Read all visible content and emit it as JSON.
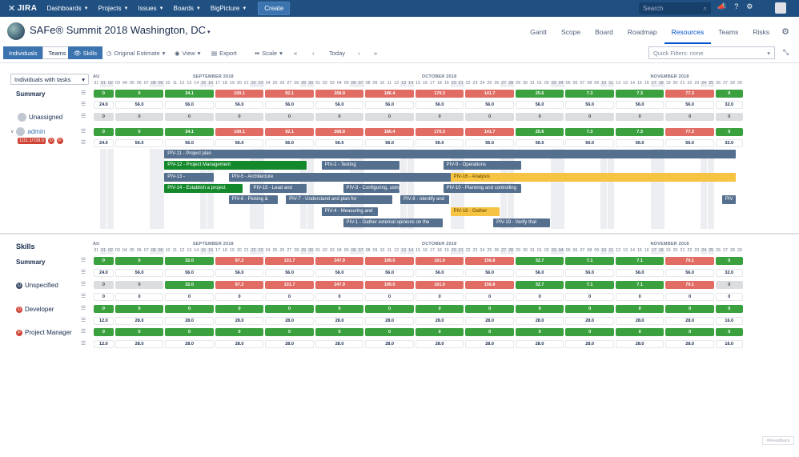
{
  "topnav": {
    "logo": "JIRA",
    "items": [
      "Dashboards",
      "Projects",
      "Issues",
      "Boards",
      "BigPicture"
    ],
    "create": "Create",
    "search_placeholder": "Search"
  },
  "project": {
    "title": "SAFe® Summit 2018 Washington, DC",
    "tabs": [
      "Gantt",
      "Scope",
      "Board",
      "Roadmap",
      "Resources",
      "Teams",
      "Risks"
    ],
    "active_tab": "Resources"
  },
  "toolbar": {
    "mode_individuals": "Individuals",
    "mode_teams": "Teams",
    "skills": "Skills",
    "estimate": "Original Estimate",
    "view": "View",
    "export": "Export",
    "scale": "Scale",
    "today": "Today",
    "quick_filter": "Quick Filters: none"
  },
  "resources": {
    "selector": "Individuals with tasks",
    "months": [
      "AU",
      "SEPTEMBER 2018",
      "OCTOBER 2018",
      "NOVEMBER 2018"
    ],
    "days": [
      "31",
      "01",
      "02",
      "03",
      "04",
      "05",
      "06",
      "07",
      "08",
      "09",
      "10",
      "11",
      "12",
      "13",
      "14",
      "15",
      "16",
      "17",
      "18",
      "19",
      "20",
      "21",
      "22",
      "23",
      "24",
      "25",
      "26",
      "27",
      "28",
      "29",
      "30",
      "01",
      "02",
      "03",
      "04",
      "05",
      "06",
      "07",
      "08",
      "09",
      "10",
      "11",
      "12",
      "13",
      "14",
      "15",
      "16",
      "17",
      "18",
      "19",
      "20",
      "21",
      "22",
      "23",
      "24",
      "25",
      "26",
      "27",
      "28",
      "29",
      "30",
      "31",
      "01",
      "02",
      "03",
      "04",
      "05",
      "06",
      "07",
      "08",
      "09",
      "10",
      "11",
      "12",
      "13",
      "14",
      "15",
      "16",
      "17",
      "18",
      "19",
      "20",
      "21",
      "22",
      "23",
      "24",
      "25",
      "26",
      "27",
      "28",
      "29"
    ],
    "rows": [
      {
        "label": "Summary",
        "top": [
          "0",
          "0",
          "34.1",
          "100.1",
          "92.1",
          "268.9",
          "186.4",
          "170.3",
          "141.7",
          "25.6",
          "7.3",
          "7.3",
          "77.3",
          "0"
        ],
        "bottom": [
          "24.0",
          "56.0",
          "56.0",
          "56.0",
          "56.0",
          "56.0",
          "56.0",
          "56.0",
          "56.0",
          "56.0",
          "56.0",
          "56.0",
          "56.0",
          "32.0"
        ]
      },
      {
        "label": "Unassigned",
        "top": [
          "0",
          "0",
          "0",
          "0",
          "0",
          "0",
          "0",
          "0",
          "0",
          "0",
          "0",
          "0",
          "0",
          "0"
        ]
      },
      {
        "label": "admin",
        "capacity": "1111.1/728.0",
        "skills": [
          "D",
          "P"
        ],
        "top": [
          "0",
          "0",
          "34.1",
          "100.1",
          "92.1",
          "268.9",
          "186.4",
          "170.3",
          "141.7",
          "25.6",
          "7.3",
          "7.3",
          "77.3",
          "0"
        ],
        "bottom": [
          "24.0",
          "56.0",
          "56.0",
          "56.0",
          "56.0",
          "56.0",
          "56.0",
          "56.0",
          "56.0",
          "56.0",
          "56.0",
          "56.0",
          "56.0",
          "32.0"
        ]
      }
    ],
    "tasks": [
      "PIV-11 - Project plan",
      "PIV-12 - Project Management",
      "PIV-2 - Testing",
      "PIV-9 - Operations",
      "PIV-13 -",
      "PIV-5 - Architecture",
      "PIV-16 - Analysis",
      "PIV-14 - Establish a project",
      "PIV-15 - Lead and",
      "PIV-3 - Configuring, using, and",
      "PIV-10 - Planning and controlling",
      "PIV-6 - Picking &",
      "PIV-7 - Understand and plan for",
      "PIV-8 - Identify and",
      "PIV",
      "PIV-4 - Measuring and",
      "PIV-18 - Gather",
      "PIV-1 - Gather external opinions on the",
      "PIV-19 - Verify that"
    ]
  },
  "skills": {
    "title": "Skills",
    "rows": [
      {
        "label": "Summary",
        "top": [
          "0",
          "0",
          "32.0",
          "87.2",
          "101.7",
          "247.9",
          "199.0",
          "161.0",
          "156.8",
          "32.7",
          "7.1",
          "7.1",
          "79.1",
          "0"
        ],
        "bottom": [
          "24.0",
          "56.0",
          "56.0",
          "56.0",
          "56.0",
          "56.0",
          "56.0",
          "56.0",
          "56.0",
          "56.0",
          "56.0",
          "56.0",
          "56.0",
          "32.0"
        ]
      },
      {
        "label": "Unspecified",
        "badge": "U",
        "top": [
          "0",
          "0",
          "32.0",
          "87.2",
          "101.7",
          "247.9",
          "199.0",
          "161.0",
          "156.8",
          "32.7",
          "7.1",
          "7.1",
          "79.1",
          "0"
        ],
        "bottom": [
          "0",
          "0",
          "0",
          "0",
          "0",
          "0",
          "0",
          "0",
          "0",
          "0",
          "0",
          "0",
          "0",
          "0"
        ]
      },
      {
        "label": "Developer",
        "badge": "D",
        "top": [
          "0",
          "0",
          "0",
          "0",
          "0",
          "0",
          "0",
          "0",
          "0",
          "0",
          "0",
          "0",
          "0",
          "0"
        ],
        "bottom": [
          "12.0",
          "28.0",
          "28.0",
          "28.0",
          "28.0",
          "28.0",
          "28.0",
          "28.0",
          "28.0",
          "28.0",
          "28.0",
          "28.0",
          "28.0",
          "16.0"
        ]
      },
      {
        "label": "Project Manager",
        "badge": "P",
        "top": [
          "0",
          "0",
          "0",
          "0",
          "0",
          "0",
          "0",
          "0",
          "0",
          "0",
          "0",
          "0",
          "0",
          "0"
        ],
        "bottom": [
          "12.0",
          "28.0",
          "28.0",
          "28.0",
          "28.0",
          "28.0",
          "28.0",
          "28.0",
          "28.0",
          "28.0",
          "28.0",
          "28.0",
          "28.0",
          "16.0"
        ]
      }
    ]
  },
  "feedback": "Feedback"
}
